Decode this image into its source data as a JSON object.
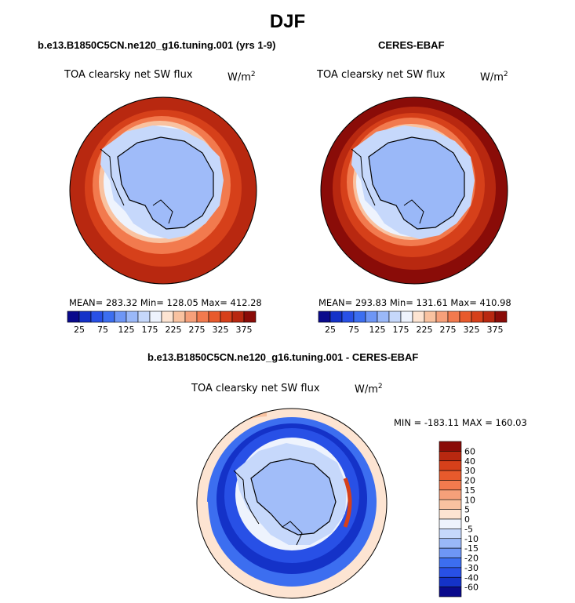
{
  "header": {
    "title": "DJF"
  },
  "panels": {
    "left": {
      "title": "b.e13.B1850C5CN.ne120_g16.tuning.001 (yrs 1-9)",
      "variable": "TOA clearsky net SW flux",
      "units": "W/m",
      "units_exp": "2",
      "stats": "MEAN= 283.32   Min= 128.05   Max= 412.28"
    },
    "right": {
      "title": "CERES-EBAF",
      "variable": "TOA clearsky net SW flux",
      "units": "W/m",
      "units_exp": "2",
      "stats": "MEAN= 293.83   Min= 131.61   Max= 410.98"
    },
    "diff": {
      "title": "b.e13.B1850C5CN.ne120_g16.tuning.001 - CERES-EBAF",
      "variable": "TOA clearsky net SW flux",
      "units": "W/m",
      "units_exp": "2",
      "stats": "MIN = -183.11  MAX = 160.03"
    }
  },
  "chart_data": [
    {
      "type": "heatmap",
      "title": "b.e13.B1850C5CN.ne120_g16.tuning.001 (yrs 1-9)",
      "variable": "TOA clearsky net SW flux",
      "units": "W/m2",
      "mean": 283.32,
      "min": 128.05,
      "max": 412.28,
      "colorbar_ticks": [
        "25",
        "75",
        "125",
        "175",
        "225",
        "275",
        "325",
        "375"
      ],
      "colorbar_colors": [
        "#0a0a8c",
        "#1432c8",
        "#2850e6",
        "#3c6ef0",
        "#6e96f5",
        "#9ab8f8",
        "#c6d8fb",
        "#eef3fd",
        "#fde4d2",
        "#f9c2a0",
        "#f6a07a",
        "#f27a4e",
        "#e85a2c",
        "#d6401a",
        "#b82810",
        "#8a0c08"
      ]
    },
    {
      "type": "heatmap",
      "title": "CERES-EBAF",
      "variable": "TOA clearsky net SW flux",
      "units": "W/m2",
      "mean": 293.83,
      "min": 131.61,
      "max": 410.98,
      "colorbar_ticks": [
        "25",
        "75",
        "125",
        "175",
        "225",
        "275",
        "325",
        "375"
      ],
      "colorbar_colors": [
        "#0a0a8c",
        "#1432c8",
        "#2850e6",
        "#3c6ef0",
        "#6e96f5",
        "#9ab8f8",
        "#c6d8fb",
        "#eef3fd",
        "#fde4d2",
        "#f9c2a0",
        "#f6a07a",
        "#f27a4e",
        "#e85a2c",
        "#d6401a",
        "#b82810",
        "#8a0c08"
      ]
    },
    {
      "type": "heatmap",
      "title": "b.e13.B1850C5CN.ne120_g16.tuning.001 - CERES-EBAF",
      "variable": "TOA clearsky net SW flux",
      "units": "W/m2",
      "min": -183.11,
      "max": 160.03,
      "colorbar_ticks": [
        "60",
        "40",
        "30",
        "20",
        "15",
        "10",
        "5",
        "0",
        "-5",
        "-10",
        "-15",
        "-20",
        "-30",
        "-40",
        "-60"
      ],
      "colorbar_colors": [
        "#8a0c08",
        "#b82810",
        "#d6401a",
        "#e85a2c",
        "#f27a4e",
        "#f6a07a",
        "#f9c2a0",
        "#fde4d2",
        "#eef3fd",
        "#c6d8fb",
        "#9ab8f8",
        "#6e96f5",
        "#3c6ef0",
        "#2850e6",
        "#1432c8",
        "#0a0a8c"
      ]
    }
  ]
}
